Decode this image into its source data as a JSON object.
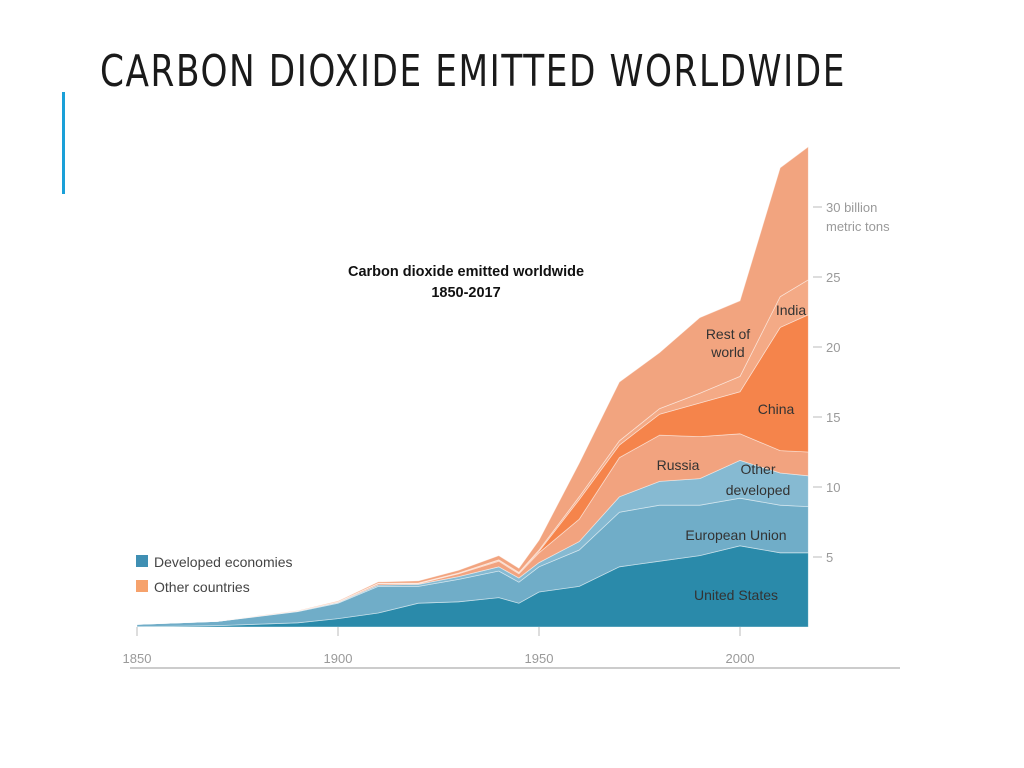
{
  "slide": {
    "title": "CARBON DIOXIDE EMITTED WORLDWIDE",
    "accent_color": "#1aa0d8"
  },
  "chart_data": {
    "type": "area",
    "stacked": true,
    "title": "Carbon dioxide emitted worldwide",
    "subtitle": "1850-2017",
    "ylabel": "30 billion metric tons",
    "ylabel_line1": "30 billion",
    "ylabel_line2": "metric tons",
    "xlim": [
      1850,
      2017
    ],
    "ylim": [
      0,
      34
    ],
    "x_ticks": [
      "1850",
      "1900",
      "1950",
      "2000"
    ],
    "y_ticks": [
      "5",
      "10",
      "15",
      "20",
      "25"
    ],
    "grid": false,
    "legend_position": "left",
    "legend": [
      {
        "label": "Developed economies",
        "color": "#3f8fb3"
      },
      {
        "label": "Other countries",
        "color": "#f6a26c"
      }
    ],
    "x": [
      1850,
      1870,
      1890,
      1900,
      1910,
      1920,
      1930,
      1940,
      1945,
      1950,
      1960,
      1970,
      1980,
      1990,
      2000,
      2010,
      2017
    ],
    "series": [
      {
        "name": "United States",
        "group": "Developed economies",
        "color": "#2a8aaa",
        "values": [
          0.02,
          0.1,
          0.3,
          0.6,
          1.0,
          1.7,
          1.8,
          2.1,
          1.7,
          2.5,
          2.9,
          4.3,
          4.7,
          5.1,
          5.8,
          5.3,
          5.3
        ]
      },
      {
        "name": "European Union",
        "group": "Developed economies",
        "color": "#70adc8",
        "values": [
          0.17,
          0.3,
          0.8,
          1.1,
          1.9,
          1.2,
          1.6,
          1.9,
          1.5,
          1.8,
          2.6,
          3.9,
          4.0,
          3.6,
          3.4,
          3.4,
          3.3
        ]
      },
      {
        "name": "Other developed",
        "group": "Developed economies",
        "color": "#86bad2",
        "values": [
          0,
          0.01,
          0.03,
          0.05,
          0.1,
          0.15,
          0.2,
          0.3,
          0.3,
          0.3,
          0.6,
          1.1,
          1.7,
          1.9,
          2.7,
          2.3,
          2.2
        ]
      },
      {
        "name": "Russia",
        "group": "Other countries",
        "color": "#f2a37f",
        "values": [
          0,
          0,
          0.02,
          0.05,
          0.1,
          0.05,
          0.2,
          0.4,
          0.3,
          0.7,
          1.6,
          2.8,
          3.3,
          3.0,
          1.9,
          1.6,
          1.7
        ]
      },
      {
        "name": "China",
        "group": "Other countries",
        "color": "#f5844b",
        "values": [
          0,
          0,
          0,
          0,
          0,
          0.02,
          0.03,
          0.05,
          0.05,
          0.1,
          1.4,
          0.9,
          1.5,
          2.4,
          3.0,
          8.8,
          9.8
        ]
      },
      {
        "name": "India",
        "group": "Other countries",
        "color": "#f4aa86",
        "values": [
          0,
          0,
          0,
          0.01,
          0.02,
          0.02,
          0.03,
          0.05,
          0.05,
          0.1,
          0.2,
          0.3,
          0.4,
          0.7,
          1.1,
          2.2,
          2.5
        ]
      },
      {
        "name": "Rest of world",
        "group": "Other countries",
        "color": "#f2a47f",
        "values": [
          0,
          0,
          0.02,
          0.05,
          0.1,
          0.15,
          0.2,
          0.3,
          0.3,
          0.7,
          2.4,
          4.2,
          4.0,
          5.4,
          5.4,
          9.2,
          9.5
        ]
      }
    ],
    "series_labels": {
      "us": "United States",
      "eu": "European Union",
      "od1": "Other",
      "od2": "developed",
      "russia": "Russia",
      "china": "China",
      "india": "India",
      "row1": "Rest of",
      "row2": "world"
    }
  }
}
